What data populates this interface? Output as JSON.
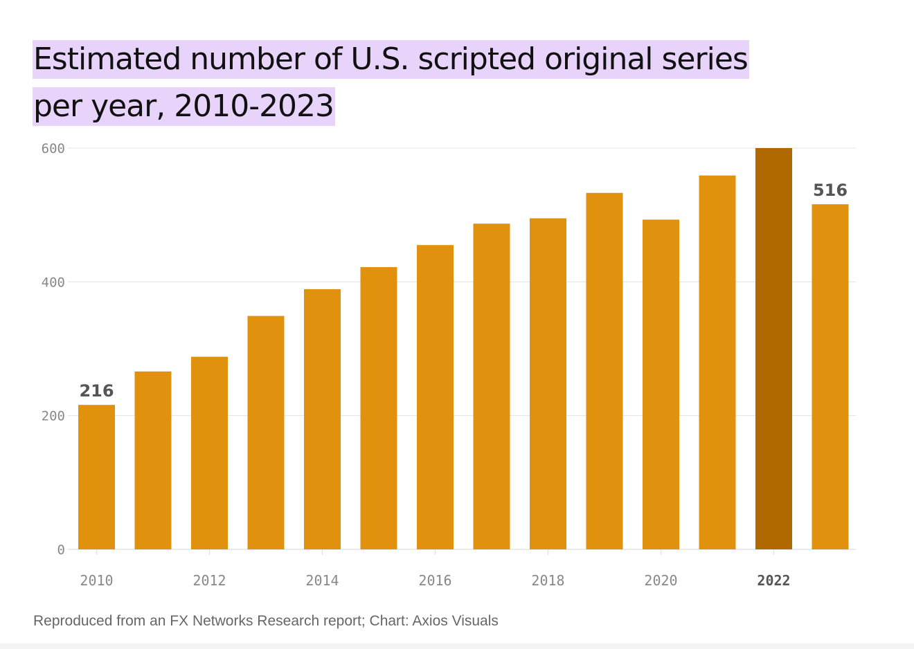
{
  "title_lines": [
    "Estimated number of U.S. scripted original series",
    "per year, 2010-2023"
  ],
  "footer": "Reproduced from an FX Networks Research report; Chart: Axios Visuals",
  "colors": {
    "bar": "#e0920f",
    "highlight": "#b06900",
    "grid": "#e3e3e3",
    "axis_text": "#888888",
    "label_text": "#555555"
  },
  "chart_data": {
    "type": "bar",
    "title": "Estimated number of U.S. scripted original series per year, 2010-2023",
    "xlabel": "",
    "ylabel": "",
    "ylim": [
      0,
      600
    ],
    "yticks": [
      0,
      200,
      400,
      600
    ],
    "categories": [
      "2010",
      "2011",
      "2012",
      "2013",
      "2014",
      "2015",
      "2016",
      "2017",
      "2018",
      "2019",
      "2020",
      "2021",
      "2022",
      "2023"
    ],
    "values": [
      216,
      266,
      288,
      349,
      389,
      422,
      455,
      487,
      495,
      533,
      493,
      559,
      600,
      516
    ],
    "xtick_labels": [
      "2010",
      "2012",
      "2014",
      "2016",
      "2018",
      "2020",
      "2022"
    ],
    "highlight_category": "2022",
    "data_labels": [
      {
        "category": "2010",
        "text": "216"
      },
      {
        "category": "2023",
        "text": "516"
      }
    ]
  }
}
